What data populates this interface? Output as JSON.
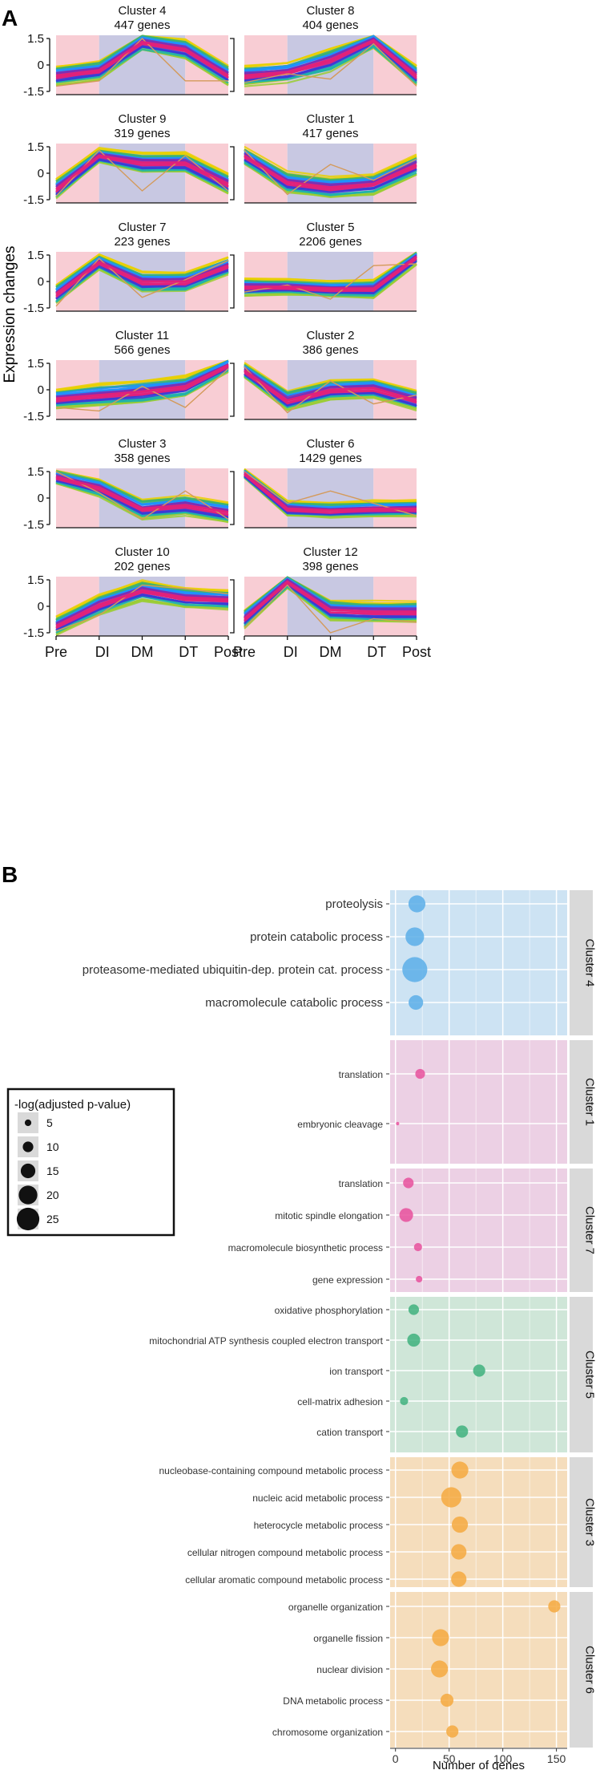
{
  "figure": {
    "panel_a_label": "A",
    "panel_b_label": "B"
  },
  "chart_data": [
    {
      "type": "line",
      "panel": "A",
      "ylabel": "Expression changes",
      "x": [
        "Pre",
        "DI",
        "DM",
        "DT",
        "Post"
      ],
      "yticks": [
        "1.5",
        "0",
        "-1.5"
      ],
      "ylim": [
        -1.5,
        1.5
      ],
      "phase_colors": {
        "rest": "#f8cdd4",
        "stimulus": "#c8c8e2"
      },
      "series_colors": [
        "#e8d000",
        "#9acd32",
        "#3cb371",
        "#20b2aa",
        "#1e90ff",
        "#3b3bd6",
        "#7b2fb5",
        "#e0217a",
        "#d49a5a"
      ],
      "clusters": [
        {
          "title": "Cluster 4",
          "genes": "447 genes",
          "mean": [
            -0.6,
            -0.3,
            1.3,
            0.9,
            -0.6
          ],
          "spread": [
            0.5,
            0.5,
            0.45,
            0.5,
            0.5
          ],
          "outlier": [
            -1.2,
            -0.9,
            1.5,
            -0.9,
            -0.9
          ]
        },
        {
          "title": "Cluster 8",
          "genes": "404 genes",
          "mean": [
            -0.6,
            -0.4,
            0.3,
            1.4,
            -0.6
          ],
          "spread": [
            0.5,
            0.5,
            0.6,
            0.4,
            0.5
          ],
          "outlier": [
            -1.0,
            -0.5,
            -0.8,
            1.2,
            -1.2
          ]
        },
        {
          "title": "Cluster 9",
          "genes": "319 genes",
          "mean": [
            -0.9,
            1.0,
            0.6,
            0.6,
            -0.6
          ],
          "spread": [
            0.5,
            0.35,
            0.5,
            0.5,
            0.5
          ],
          "outlier": [
            -1.3,
            1.3,
            -1.0,
            1.0,
            -1.0
          ]
        },
        {
          "title": "Cluster 1",
          "genes": "417 genes",
          "mean": [
            1.0,
            -0.5,
            -0.8,
            -0.6,
            0.5
          ],
          "spread": [
            0.4,
            0.5,
            0.5,
            0.5,
            0.5
          ],
          "outlier": [
            1.3,
            -1.2,
            0.5,
            -0.4,
            0.8
          ]
        },
        {
          "title": "Cluster 7",
          "genes": "223 genes",
          "mean": [
            -0.7,
            1.1,
            0.0,
            0.0,
            0.9
          ],
          "spread": [
            0.5,
            0.4,
            0.5,
            0.5,
            0.45
          ],
          "outlier": [
            -1.4,
            1.3,
            -0.9,
            0.1,
            1.2
          ]
        },
        {
          "title": "Cluster 5",
          "genes": "2206 genes",
          "mean": [
            -0.3,
            -0.3,
            -0.4,
            -0.4,
            1.4
          ],
          "spread": [
            0.45,
            0.4,
            0.4,
            0.45,
            0.35
          ],
          "outlier": [
            -0.6,
            -0.2,
            -1.0,
            0.9,
            1.0
          ]
        },
        {
          "title": "Cluster 11",
          "genes": "566 genes",
          "mean": [
            -0.5,
            -0.3,
            -0.1,
            0.2,
            1.4
          ],
          "spread": [
            0.45,
            0.55,
            0.55,
            0.5,
            0.35
          ],
          "outlier": [
            -1.0,
            -1.2,
            0.2,
            -1.0,
            1.2
          ]
        },
        {
          "title": "Cluster 2",
          "genes": "386 genes",
          "mean": [
            1.1,
            -0.6,
            0.0,
            0.1,
            -0.6
          ],
          "spread": [
            0.4,
            0.5,
            0.5,
            0.5,
            0.5
          ],
          "outlier": [
            1.3,
            -1.3,
            0.5,
            -0.8,
            -0.3
          ]
        },
        {
          "title": "Cluster 3",
          "genes": "358 genes",
          "mean": [
            1.2,
            0.6,
            -0.6,
            -0.4,
            -0.8
          ],
          "spread": [
            0.35,
            0.45,
            0.5,
            0.5,
            0.5
          ],
          "outlier": [
            1.5,
            0.3,
            -1.2,
            0.4,
            -1.2
          ]
        },
        {
          "title": "Cluster 6",
          "genes": "1429 genes",
          "mean": [
            1.4,
            -0.6,
            -0.7,
            -0.6,
            -0.6
          ],
          "spread": [
            0.25,
            0.4,
            0.4,
            0.4,
            0.4
          ],
          "outlier": [
            1.5,
            -0.3,
            0.4,
            -0.3,
            -1.0
          ]
        },
        {
          "title": "Cluster 10",
          "genes": "202 genes",
          "mean": [
            -1.1,
            0.1,
            0.9,
            0.5,
            0.4
          ],
          "spread": [
            0.45,
            0.5,
            0.5,
            0.5,
            0.5
          ],
          "outlier": [
            -1.4,
            -0.5,
            1.2,
            1.0,
            0.7
          ]
        },
        {
          "title": "Cluster 12",
          "genes": "398 genes",
          "mean": [
            -0.7,
            1.4,
            -0.2,
            -0.3,
            -0.3
          ],
          "spread": [
            0.45,
            0.3,
            0.5,
            0.5,
            0.5
          ],
          "outlier": [
            -1.2,
            1.2,
            -1.5,
            -0.7,
            -0.9
          ]
        }
      ]
    },
    {
      "type": "scatter",
      "panel": "B",
      "xlabel": "Number of genes",
      "xticks": [
        0,
        50,
        100,
        150
      ],
      "xlim": [
        -5,
        160
      ],
      "legend_title": "-log(adjusted p-value)",
      "legend_sizes": [
        5,
        10,
        15,
        20,
        25
      ],
      "groups": [
        {
          "name": "Cluster 4",
          "color": "#5aaee8",
          "bg": "#cde3f3",
          "terms": [
            {
              "term": "proteolysis",
              "genes": 20,
              "logp": 18
            },
            {
              "term": "protein catabolic process",
              "genes": 18,
              "logp": 20
            },
            {
              "term": "proteasome-mediated ubiquitin-dep. protein cat. process",
              "genes": 18,
              "logp": 28
            },
            {
              "term": "macromolecule catabolic process",
              "genes": 19,
              "logp": 15
            }
          ]
        },
        {
          "name": "Cluster 1",
          "color": "#e8509c",
          "bg": "#ecd0e4",
          "terms": [
            {
              "term": "translation",
              "genes": 23,
              "logp": 9
            },
            {
              "term": "embryonic cleavage",
              "genes": 2,
              "logp": 1
            }
          ]
        },
        {
          "name": "Cluster 7",
          "color": "#e8509c",
          "bg": "#ecd0e4",
          "terms": [
            {
              "term": "translation",
              "genes": 12,
              "logp": 10
            },
            {
              "term": "mitotic spindle elongation",
              "genes": 10,
              "logp": 14
            },
            {
              "term": "macromolecule biosynthetic process",
              "genes": 21,
              "logp": 7
            },
            {
              "term": "gene expression",
              "genes": 22,
              "logp": 5
            }
          ]
        },
        {
          "name": "Cluster 5",
          "color": "#3fb07e",
          "bg": "#cfe6d8",
          "terms": [
            {
              "term": "oxidative phosphorylation",
              "genes": 17,
              "logp": 10
            },
            {
              "term": "mitochondrial ATP synthesis coupled electron transport",
              "genes": 17,
              "logp": 13
            },
            {
              "term": "ion transport",
              "genes": 78,
              "logp": 12
            },
            {
              "term": "cell-matrix adhesion",
              "genes": 8,
              "logp": 7
            },
            {
              "term": "cation transport",
              "genes": 62,
              "logp": 12
            }
          ]
        },
        {
          "name": "Cluster 3",
          "color": "#f4a940",
          "bg": "#f5ddbc",
          "terms": [
            {
              "term": "nucleobase-containing compound metabolic process",
              "genes": 60,
              "logp": 18
            },
            {
              "term": "nucleic acid metabolic process",
              "genes": 52,
              "logp": 22
            },
            {
              "term": "heterocycle metabolic process",
              "genes": 60,
              "logp": 17
            },
            {
              "term": "cellular nitrogen compound metabolic process",
              "genes": 59,
              "logp": 16
            },
            {
              "term": "cellular aromatic compound metabolic process",
              "genes": 59,
              "logp": 16
            }
          ]
        },
        {
          "name": "Cluster 6",
          "color": "#f4a940",
          "bg": "#f5ddbc",
          "terms": [
            {
              "term": "organelle organization",
              "genes": 148,
              "logp": 12
            },
            {
              "term": "organelle fission",
              "genes": 42,
              "logp": 18
            },
            {
              "term": "nuclear division",
              "genes": 41,
              "logp": 18
            },
            {
              "term": "DNA metabolic process",
              "genes": 48,
              "logp": 13
            },
            {
              "term": "chromosome organization",
              "genes": 53,
              "logp": 12
            }
          ]
        }
      ]
    }
  ]
}
